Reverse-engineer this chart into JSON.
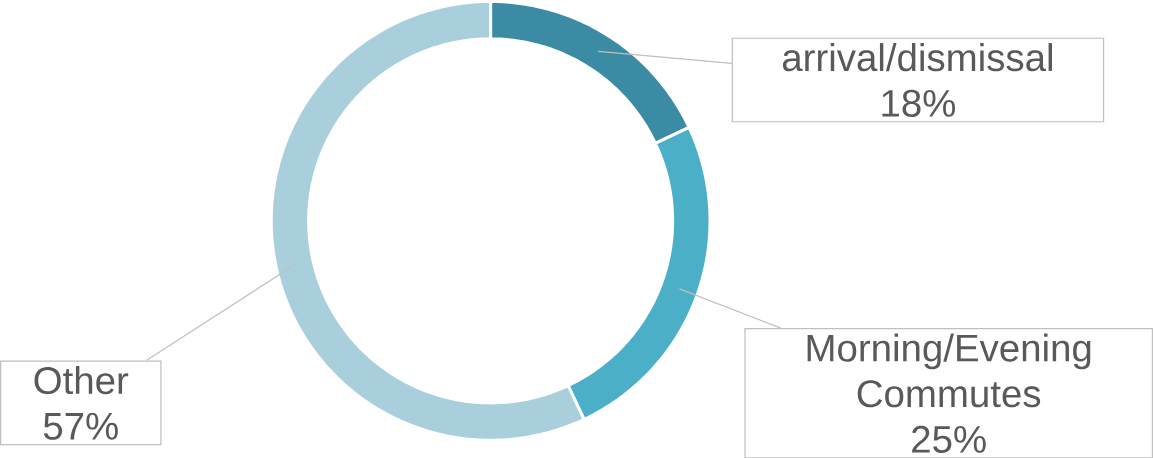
{
  "chart_data": {
    "type": "donut",
    "categories": [
      "arrival/dismissal",
      "Morning/Evening Commutes",
      "Other"
    ],
    "values": [
      18,
      25,
      57
    ],
    "value_labels": [
      "18%",
      "25%",
      "57%"
    ],
    "colors": [
      "#3a8ba3",
      "#4bafc8",
      "#a9cfdc"
    ]
  }
}
